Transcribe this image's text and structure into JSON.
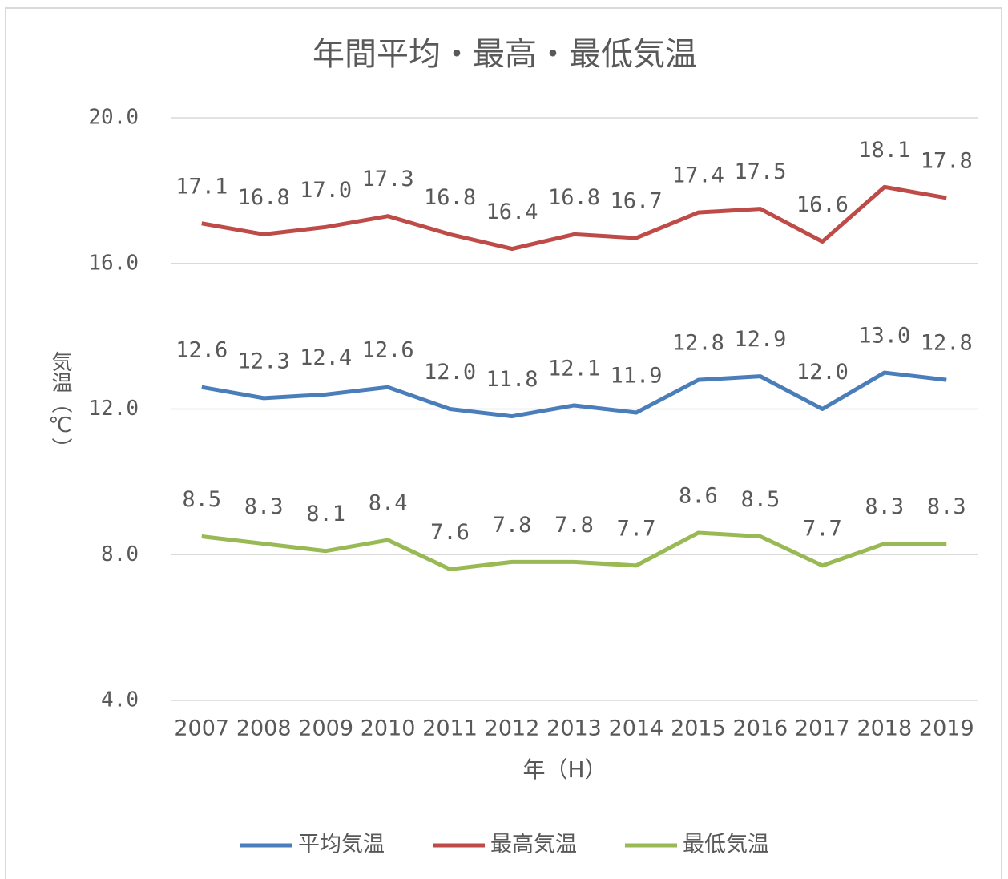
{
  "chart_data": {
    "type": "line",
    "title": "年間平均・最高・最低気温",
    "x_label": "年（H）",
    "y_label": "気温（℃）",
    "categories": [
      "2007",
      "2008",
      "2009",
      "2010",
      "2011",
      "2012",
      "2013",
      "2014",
      "2015",
      "2016",
      "2017",
      "2018",
      "2019"
    ],
    "series": [
      {
        "name": "平均気温",
        "color": "#4a7ebb",
        "values": [
          12.6,
          12.3,
          12.4,
          12.6,
          12.0,
          11.8,
          12.1,
          11.9,
          12.8,
          12.9,
          12.0,
          13.0,
          12.8
        ],
        "value_labels": [
          "12.6",
          "12.3",
          "12.4",
          "12.6",
          "12.0",
          "11.8",
          "12.1",
          "11.9",
          "12.8",
          "12.9",
          "12.0",
          "13.0",
          "12.8"
        ]
      },
      {
        "name": "最高気温",
        "color": "#be4b48",
        "values": [
          17.1,
          16.8,
          17.0,
          17.3,
          16.8,
          16.4,
          16.8,
          16.7,
          17.4,
          17.5,
          16.6,
          18.1,
          17.8
        ],
        "value_labels": [
          "17.1",
          "16.8",
          "17.0",
          "17.3",
          "16.8",
          "16.4",
          "16.8",
          "16.7",
          "17.4",
          "17.5",
          "16.6",
          "18.1",
          "17.8"
        ]
      },
      {
        "name": "最低気温",
        "color": "#98b954",
        "values": [
          8.5,
          8.3,
          8.1,
          8.4,
          7.6,
          7.8,
          7.8,
          7.7,
          8.6,
          8.5,
          7.7,
          8.3,
          8.3
        ],
        "value_labels": [
          "8.5",
          "8.3",
          "8.1",
          "8.4",
          "7.6",
          "7.8",
          "7.8",
          "7.7",
          "8.6",
          "8.5",
          "7.7",
          "8.3",
          "8.3"
        ]
      }
    ],
    "ylim": [
      4,
      20
    ],
    "yticks": [
      {
        "value": 4,
        "label": "4.0"
      },
      {
        "value": 8,
        "label": "8.0"
      },
      {
        "value": 12,
        "label": "12.0"
      },
      {
        "value": 16,
        "label": "16.0"
      },
      {
        "value": 20,
        "label": "20.0"
      }
    ],
    "grid": true,
    "legend": "bottom"
  }
}
